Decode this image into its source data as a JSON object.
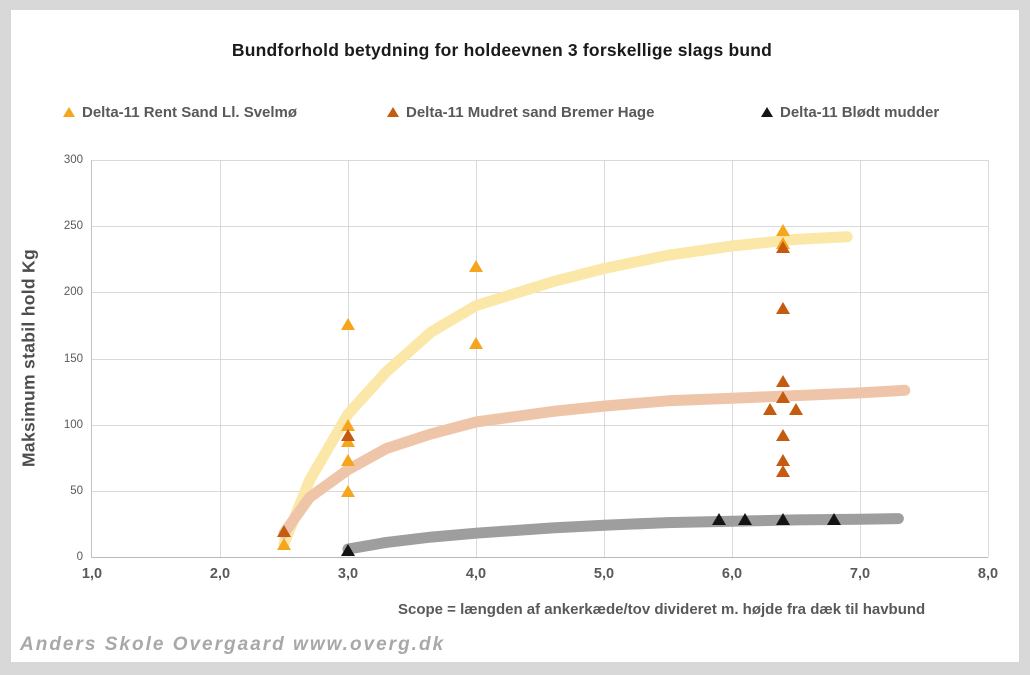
{
  "title": "Bundforhold betydning for holdeevnen 3 forskellige slags bund",
  "watermark": "Anders Skole Overgaard www.overg.dk",
  "legend": [
    {
      "label": "Delta-11 Rent Sand Ll. Svelmø",
      "color": "#F6A51C",
      "marker": "triangle-icon"
    },
    {
      "label": "Delta-11 Mudret sand Bremer Hage",
      "color": "#C55A11",
      "marker": "triangle-icon"
    },
    {
      "label": "Delta-11 Blødt mudder",
      "color": "#141414",
      "marker": "triangle-icon"
    }
  ],
  "colors": {
    "frame": "#D8D8D8",
    "plot_background": "#FFFFFF",
    "gridline": "#D9D9D9",
    "axis_text": "#595959",
    "title_text": "#1a1a1a",
    "watermark_text": "#A8A8A8"
  },
  "chart_data": {
    "type": "scatter",
    "title": "Bundforhold betydning for holdeevnen 3 forskellige slags bund",
    "xlabel": "Scope = længden af ankerkæde/tov divideret m. højde fra dæk til havbund",
    "ylabel": "Maksimum stabil hold Kg",
    "xlim": [
      1.0,
      8.0
    ],
    "ylim": [
      0,
      300
    ],
    "grid": true,
    "legend_position": "top",
    "x_ticks": [
      {
        "value": 1.0,
        "label": "1,0"
      },
      {
        "value": 2.0,
        "label": "2,0"
      },
      {
        "value": 3.0,
        "label": "3,0"
      },
      {
        "value": 4.0,
        "label": "4,0"
      },
      {
        "value": 5.0,
        "label": "5,0"
      },
      {
        "value": 6.0,
        "label": "6,0"
      },
      {
        "value": 7.0,
        "label": "7,0"
      },
      {
        "value": 8.0,
        "label": "8,0"
      }
    ],
    "y_ticks": [
      {
        "value": 0,
        "label": "0"
      },
      {
        "value": 50,
        "label": "50"
      },
      {
        "value": 100,
        "label": "100"
      },
      {
        "value": 150,
        "label": "150"
      },
      {
        "value": 200,
        "label": "200"
      },
      {
        "value": 250,
        "label": "250"
      },
      {
        "value": 300,
        "label": "300"
      }
    ],
    "series": [
      {
        "name": "Delta-11 Rent Sand Ll. Svelmø",
        "marker": "triangle",
        "color": "#F6A51C",
        "points": [
          [
            2.5,
            10
          ],
          [
            3.0,
            50
          ],
          [
            3.0,
            73
          ],
          [
            3.0,
            88
          ],
          [
            3.0,
            100
          ],
          [
            3.0,
            176
          ],
          [
            4.0,
            162
          ],
          [
            4.0,
            220
          ],
          [
            6.4,
            237
          ],
          [
            6.4,
            247
          ]
        ],
        "trendline": {
          "type": "logarithmic",
          "color": "#FBE7A8",
          "points": [
            [
              2.5,
              10
            ],
            [
              2.7,
              58
            ],
            [
              3.0,
              108
            ],
            [
              3.3,
              140
            ],
            [
              3.65,
              170
            ],
            [
              4.0,
              190
            ],
            [
              4.6,
              208
            ],
            [
              5.0,
              218
            ],
            [
              5.5,
              228
            ],
            [
              6.0,
              235
            ],
            [
              6.5,
              240
            ],
            [
              6.9,
              242
            ]
          ]
        }
      },
      {
        "name": "Delta-11 Mudret sand Bremer Hage",
        "marker": "triangle",
        "color": "#C55A11",
        "points": [
          [
            2.5,
            20
          ],
          [
            3.0,
            92
          ],
          [
            6.4,
            234
          ],
          [
            6.4,
            188
          ],
          [
            6.4,
            133
          ],
          [
            6.4,
            121
          ],
          [
            6.3,
            112
          ],
          [
            6.5,
            112
          ],
          [
            6.4,
            92
          ],
          [
            6.4,
            73
          ],
          [
            6.4,
            65
          ]
        ],
        "trendline": {
          "type": "logarithmic",
          "color": "#EFC5AA",
          "points": [
            [
              2.5,
              18
            ],
            [
              2.7,
              45
            ],
            [
              3.0,
              66
            ],
            [
              3.3,
              82
            ],
            [
              3.65,
              93
            ],
            [
              4.0,
              102
            ],
            [
              4.6,
              110
            ],
            [
              5.0,
              114
            ],
            [
              5.5,
              118
            ],
            [
              6.0,
              120
            ],
            [
              6.5,
              122
            ],
            [
              7.0,
              124
            ],
            [
              7.35,
              126
            ]
          ]
        }
      },
      {
        "name": "Delta-11 Blødt mudder",
        "marker": "triangle",
        "color": "#141414",
        "points": [
          [
            3.0,
            5
          ],
          [
            5.9,
            29
          ],
          [
            6.1,
            29
          ],
          [
            6.4,
            29
          ],
          [
            6.8,
            29
          ]
        ],
        "trendline": {
          "type": "logarithmic",
          "color": "#9E9E9E",
          "points": [
            [
              3.0,
              6
            ],
            [
              3.3,
              11
            ],
            [
              3.65,
              15
            ],
            [
              4.0,
              18
            ],
            [
              4.6,
              22
            ],
            [
              5.0,
              24
            ],
            [
              5.5,
              26
            ],
            [
              6.0,
              27
            ],
            [
              6.5,
              28
            ],
            [
              7.0,
              28.5
            ],
            [
              7.3,
              29
            ]
          ]
        }
      }
    ]
  }
}
